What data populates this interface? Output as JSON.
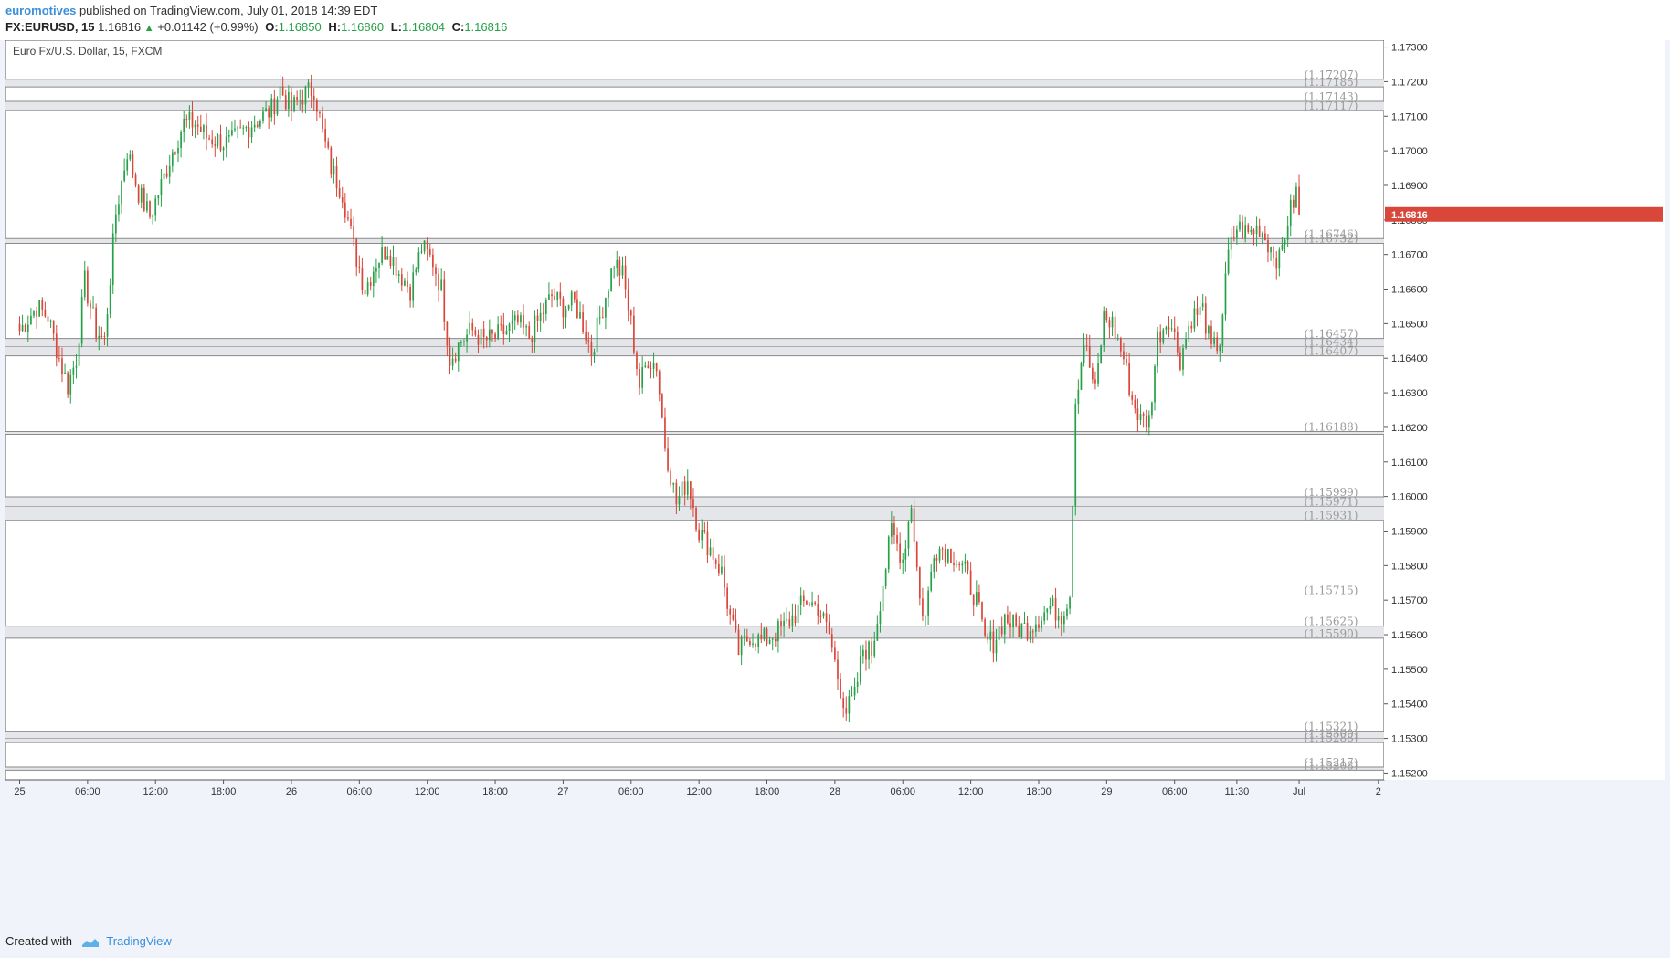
{
  "header": {
    "author": "euromotives",
    "published": "published on TradingView.com, July 01, 2018 14:39 EDT",
    "symbol": "FX:EURUSD, 15",
    "last": "1.16816",
    "change": "+0.01142 (+0.99%)",
    "open_label": "O:",
    "open": "1.16850",
    "high_label": "H:",
    "high": "1.16860",
    "low_label": "L:",
    "low": "1.16804",
    "close_label": "C:",
    "close": "1.16816"
  },
  "footer": {
    "created_with": "Created with",
    "brand": "TradingView"
  },
  "colors": {
    "up": "#26a148",
    "down": "#d9473a",
    "last_price_bg": "#d9473a",
    "level_line": "#8a8a8a",
    "level_fill": "#e4e6ea",
    "author": "#3a8fd9"
  },
  "chart_data": {
    "type": "candlestick",
    "title": "Euro Fx/U.S. Dollar, 15, FXCM",
    "last_price_label": "1.16816",
    "ylim": [
      1.1518,
      1.1732
    ],
    "y_ticks": [
      "1.17300",
      "1.17200",
      "1.17100",
      "1.17000",
      "1.16900",
      "1.16800",
      "1.16700",
      "1.16600",
      "1.16500",
      "1.16400",
      "1.16300",
      "1.16200",
      "1.16100",
      "1.16000",
      "1.15900",
      "1.15800",
      "1.15700",
      "1.15600",
      "1.15500",
      "1.15400",
      "1.15300",
      "1.15200"
    ],
    "x_ticks": [
      {
        "label": "25",
        "bar": 0
      },
      {
        "label": "06:00",
        "bar": 24
      },
      {
        "label": "12:00",
        "bar": 48
      },
      {
        "label": "18:00",
        "bar": 72
      },
      {
        "label": "26",
        "bar": 96
      },
      {
        "label": "06:00",
        "bar": 120
      },
      {
        "label": "12:00",
        "bar": 144
      },
      {
        "label": "18:00",
        "bar": 168
      },
      {
        "label": "27",
        "bar": 192
      },
      {
        "label": "06:00",
        "bar": 216
      },
      {
        "label": "12:00",
        "bar": 240
      },
      {
        "label": "18:00",
        "bar": 264
      },
      {
        "label": "28",
        "bar": 288
      },
      {
        "label": "06:00",
        "bar": 312
      },
      {
        "label": "12:00",
        "bar": 336
      },
      {
        "label": "18:00",
        "bar": 360
      },
      {
        "label": "29",
        "bar": 384
      },
      {
        "label": "06:00",
        "bar": 408
      },
      {
        "label": "11:30",
        "bar": 430
      },
      {
        "label": "Jul",
        "bar": 452
      },
      {
        "label": "2",
        "bar": 480
      }
    ],
    "x_range_bars": [
      -5,
      482
    ],
    "level_zones": [
      {
        "top": 1.17207,
        "bottom": 1.17185,
        "labels": [
          "(1.17207)",
          "(1.17185)"
        ]
      },
      {
        "top": 1.17143,
        "bottom": 1.17117,
        "labels": [
          "(1.17143)",
          "(1.17117)"
        ]
      },
      {
        "top": 1.16746,
        "bottom": 1.16732,
        "labels": [
          "(1.16746)",
          "(1.16732)"
        ]
      },
      {
        "top": 1.16457,
        "bottom": 1.16407,
        "labels": [
          "(1.16457)",
          "(1.16434)",
          "(1.16407)"
        ],
        "mid": 1.16434
      },
      {
        "top": 1.16188,
        "bottom": 1.1618,
        "labels": [
          "(1.16188)"
        ]
      },
      {
        "top": 1.15999,
        "bottom": 1.15931,
        "labels": [
          "(1.15999)",
          "(1.15971)",
          "(1.15931)"
        ],
        "mid": 1.15971
      },
      {
        "top": 1.15715,
        "bottom": 1.15715,
        "labels": [
          "(1.15715)"
        ]
      },
      {
        "top": 1.15625,
        "bottom": 1.1559,
        "labels": [
          "(1.15625)",
          "(1.15590)"
        ]
      },
      {
        "top": 1.15321,
        "bottom": 1.15288,
        "labels": [
          "(1.15321)",
          "(1.15300)",
          "(1.15288)"
        ],
        "mid": 1.153
      },
      {
        "top": 1.15217,
        "bottom": 1.15208,
        "labels": [
          "(1.15217)",
          "(1.15208)"
        ]
      }
    ],
    "anchors": [
      [
        0,
        1.1648
      ],
      [
        6,
        1.1655
      ],
      [
        10,
        1.1652
      ],
      [
        14,
        1.164
      ],
      [
        17,
        1.1632
      ],
      [
        20,
        1.164
      ],
      [
        23,
        1.1662
      ],
      [
        27,
        1.1648
      ],
      [
        30,
        1.1645
      ],
      [
        34,
        1.1682
      ],
      [
        38,
        1.17
      ],
      [
        42,
        1.1688
      ],
      [
        46,
        1.1681
      ],
      [
        50,
        1.169
      ],
      [
        54,
        1.17
      ],
      [
        58,
        1.1708
      ],
      [
        62,
        1.1708
      ],
      [
        66,
        1.1704
      ],
      [
        70,
        1.1703
      ],
      [
        74,
        1.1702
      ],
      [
        78,
        1.1705
      ],
      [
        82,
        1.1708
      ],
      [
        86,
        1.171
      ],
      [
        89,
        1.1712
      ],
      [
        92,
        1.1718
      ],
      [
        96,
        1.1712
      ],
      [
        100,
        1.1716
      ],
      [
        104,
        1.1718
      ],
      [
        107,
        1.1705
      ],
      [
        110,
        1.1695
      ],
      [
        114,
        1.1688
      ],
      [
        118,
        1.1672
      ],
      [
        122,
        1.166
      ],
      [
        126,
        1.1668
      ],
      [
        130,
        1.1672
      ],
      [
        134,
        1.1665
      ],
      [
        138,
        1.166
      ],
      [
        142,
        1.1672
      ],
      [
        146,
        1.1668
      ],
      [
        149,
        1.166
      ],
      [
        152,
        1.164
      ],
      [
        156,
        1.1645
      ],
      [
        160,
        1.1648
      ],
      [
        164,
        1.1645
      ],
      [
        168,
        1.1646
      ],
      [
        172,
        1.1648
      ],
      [
        176,
        1.165
      ],
      [
        180,
        1.1646
      ],
      [
        184,
        1.1652
      ],
      [
        188,
        1.1658
      ],
      [
        192,
        1.1655
      ],
      [
        196,
        1.1656
      ],
      [
        199,
        1.165
      ],
      [
        202,
        1.1642
      ],
      [
        206,
        1.1655
      ],
      [
        210,
        1.1668
      ],
      [
        213,
        1.1664
      ],
      [
        216,
        1.165
      ],
      [
        219,
        1.1632
      ],
      [
        222,
        1.164
      ],
      [
        225,
        1.1638
      ],
      [
        228,
        1.1615
      ],
      [
        232,
        1.1598
      ],
      [
        236,
        1.1605
      ],
      [
        240,
        1.159
      ],
      [
        244,
        1.1585
      ],
      [
        248,
        1.1578
      ],
      [
        251,
        1.1565
      ],
      [
        254,
        1.1555
      ],
      [
        258,
        1.156
      ],
      [
        262,
        1.1558
      ],
      [
        266,
        1.156
      ],
      [
        270,
        1.1562
      ],
      [
        274,
        1.1566
      ],
      [
        278,
        1.157
      ],
      [
        282,
        1.1568
      ],
      [
        286,
        1.156
      ],
      [
        289,
        1.1548
      ],
      [
        292,
        1.1538
      ],
      [
        295,
        1.1542
      ],
      [
        298,
        1.1556
      ],
      [
        301,
        1.1555
      ],
      [
        305,
        1.1575
      ],
      [
        308,
        1.159
      ],
      [
        312,
        1.1582
      ],
      [
        315,
        1.1598
      ],
      [
        318,
        1.157
      ],
      [
        320,
        1.1565
      ],
      [
        323,
        1.1585
      ],
      [
        326,
        1.1585
      ],
      [
        330,
        1.1583
      ],
      [
        334,
        1.1578
      ],
      [
        338,
        1.157
      ],
      [
        341,
        1.1558
      ],
      [
        344,
        1.1558
      ],
      [
        348,
        1.1565
      ],
      [
        352,
        1.1562
      ],
      [
        356,
        1.1562
      ],
      [
        360,
        1.1565
      ],
      [
        364,
        1.1568
      ],
      [
        368,
        1.1566
      ],
      [
        371,
        1.1572
      ],
      [
        373,
        1.1628
      ],
      [
        376,
        1.1645
      ],
      [
        380,
        1.163
      ],
      [
        383,
        1.1652
      ],
      [
        386,
        1.165
      ],
      [
        390,
        1.164
      ],
      [
        393,
        1.1628
      ],
      [
        396,
        1.1622
      ],
      [
        399,
        1.1622
      ],
      [
        402,
        1.1646
      ],
      [
        406,
        1.1652
      ],
      [
        410,
        1.164
      ],
      [
        414,
        1.1652
      ],
      [
        418,
        1.1654
      ],
      [
        421,
        1.1642
      ],
      [
        424,
        1.1645
      ],
      [
        427,
        1.167
      ],
      [
        430,
        1.1678
      ],
      [
        434,
        1.1676
      ],
      [
        438,
        1.1678
      ],
      [
        442,
        1.1672
      ],
      [
        445,
        1.1668
      ],
      [
        448,
        1.168
      ],
      [
        451,
        1.1688
      ],
      [
        452,
        1.16816
      ]
    ],
    "notes": "15-minute EURUSD candlestick series from Jun 25 to Jul 1, 2018; anchors are approximate close prices read from the chart and interpolated into candles"
  }
}
